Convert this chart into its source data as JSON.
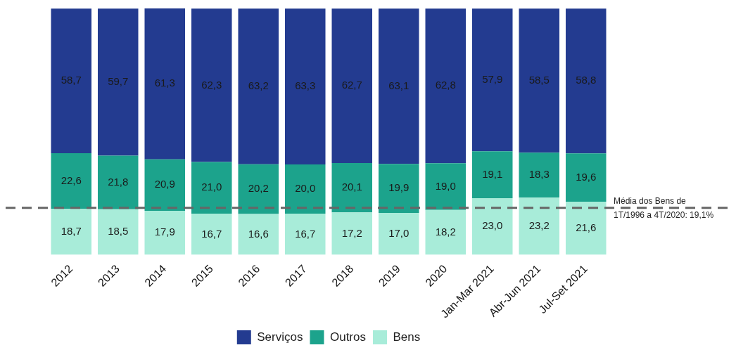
{
  "chart_data": {
    "type": "bar",
    "stacked": true,
    "categories": [
      "2012",
      "2013",
      "2014",
      "2015",
      "2016",
      "2017",
      "2018",
      "2019",
      "2020",
      "Jan-Mar 2021",
      "Abr-Jun 2021",
      "Jul-Set 2021"
    ],
    "series": [
      {
        "name": "Bens",
        "color": "#a8ecd9",
        "values": [
          18.7,
          18.5,
          17.9,
          16.7,
          16.6,
          16.7,
          17.2,
          17.0,
          18.2,
          23.0,
          23.2,
          21.6
        ],
        "value_labels": [
          "18,7",
          "18,5",
          "17,9",
          "16,7",
          "16,6",
          "16,7",
          "17,2",
          "17,0",
          "18,2",
          "23,0",
          "23,2",
          "21,6"
        ]
      },
      {
        "name": "Outros",
        "color": "#1ca38c",
        "values": [
          22.6,
          21.8,
          20.9,
          21.0,
          20.2,
          20.0,
          20.1,
          19.9,
          19.0,
          19.1,
          18.3,
          19.6
        ],
        "value_labels": [
          "22,6",
          "21,8",
          "20,9",
          "21,0",
          "20,2",
          "20,0",
          "20,1",
          "19,9",
          "19,0",
          "19,1",
          "18,3",
          "19,6"
        ]
      },
      {
        "name": "Serviços",
        "color": "#233b90",
        "values": [
          58.7,
          59.7,
          61.3,
          62.3,
          63.2,
          63.3,
          62.7,
          63.1,
          62.8,
          57.9,
          58.5,
          58.8
        ],
        "value_labels": [
          "58,7",
          "59,7",
          "61,3",
          "62,3",
          "63,2",
          "63,3",
          "62,7",
          "63,1",
          "62,8",
          "57,9",
          "58,5",
          "58,8"
        ]
      }
    ],
    "ref_lines": [
      {
        "axis": "y",
        "value": 19.1,
        "label": "Média dos Bens de 1T/1996 a 4T/2020: 19,1%",
        "color": "#666666",
        "line_style": "dashed"
      }
    ],
    "legend": "bottom",
    "grid": false
  }
}
